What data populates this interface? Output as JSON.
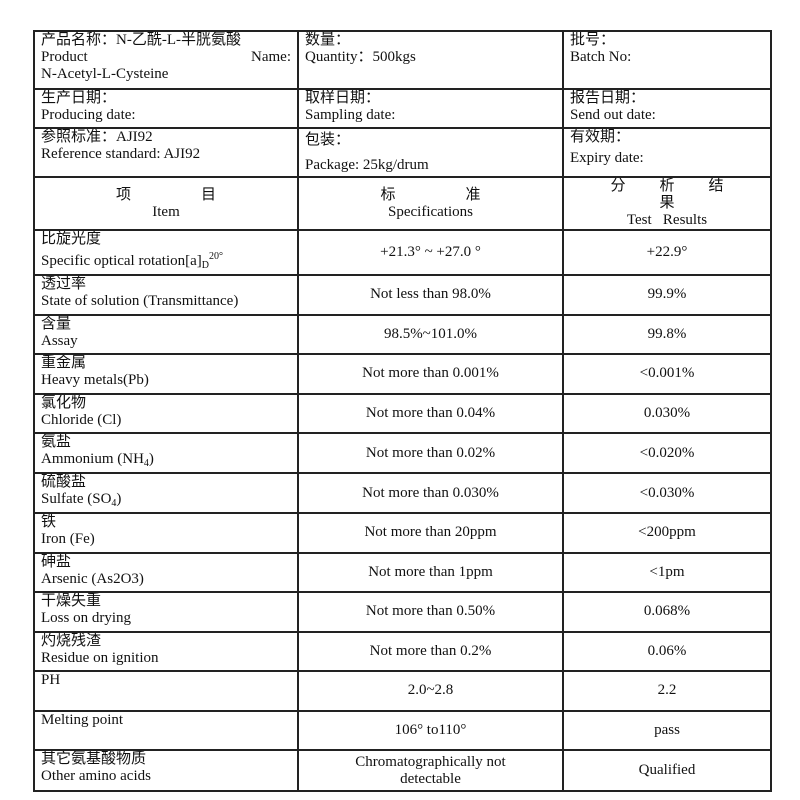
{
  "info": {
    "product_zh": "产品名称：N-乙酰-L-半胱氨酸",
    "product_label": "Product",
    "product_name_label": "Name:",
    "product_name": "N-Acetyl-L-Cysteine",
    "quantity_zh": "数量：",
    "quantity": "Quantity：500kgs",
    "batch_zh": "批号：",
    "batch": "Batch No:",
    "producing_zh": "生产日期：",
    "producing": "Producing date:",
    "sampling_zh": "取样日期：",
    "sampling": "Sampling date:",
    "sendout_zh": "报告日期：",
    "sendout": "Send out date:",
    "reference_zh": "参照标准：AJI92",
    "reference": "Reference standard: AJI92",
    "package_zh": "包装：",
    "package": "Package: 25kg/drum",
    "expiry_zh": "有效期：",
    "expiry": "Expiry date:"
  },
  "headers": {
    "item_zh": "项目",
    "item": "Item",
    "spec_zh": "标准",
    "spec": "Specifications",
    "result_zh": "分析结果",
    "result": "Test   Results"
  },
  "rows": [
    {
      "zh": "比旋光度",
      "en": "Specific optical rotation[a]",
      "sub": "D",
      "sup": "20°",
      "spec": "+21.3° ~ +27.0 °",
      "result": "+22.9°"
    },
    {
      "zh": "透过率",
      "en": "State of solution (Transmittance)",
      "spec": "Not less than 98.0%",
      "result": "99.9%"
    },
    {
      "zh": "含量",
      "en": "Assay",
      "spec": "98.5%~101.0%",
      "result": "99.8%"
    },
    {
      "zh": "重金属",
      "en": "Heavy metals(Pb)",
      "spec": "Not more than 0.001%",
      "result": "<0.001%"
    },
    {
      "zh": "氯化物",
      "en": "Chloride (Cl)",
      "spec": "Not more than 0.04%",
      "result": "0.030%"
    },
    {
      "zh": "氨盐",
      "en": "Ammonium (NH",
      "sub": "4",
      "en_end": ")",
      "spec": "Not more than 0.02%",
      "result": "<0.020%"
    },
    {
      "zh": "硫酸盐",
      "en": "Sulfate (SO",
      "sub": "4",
      "en_end": ")",
      "spec": "Not more than 0.030%",
      "result": "<0.030%"
    },
    {
      "zh": "铁",
      "en": "Iron (Fe)",
      "spec": "Not more than 20ppm",
      "result": "<200ppm"
    },
    {
      "zh": "砷盐",
      "en": "Arsenic (As2O3)",
      "spec": "Not more than 1ppm",
      "result": "<1pm"
    },
    {
      "zh": "干燥失重",
      "en": "Loss on drying",
      "spec": "Not more than 0.50%",
      "result": "0.068%"
    },
    {
      "zh": "灼烧残渣",
      "en": "Residue on ignition",
      "spec": "Not more than 0.2%",
      "result": "0.06%"
    },
    {
      "en": "PH",
      "spec": "2.0~2.8",
      "result": "2.2"
    },
    {
      "en": "Melting point",
      "spec": "106° to110°",
      "result": "pass"
    },
    {
      "zh": "其它氨基酸物质",
      "en": "Other amino acids",
      "spec": "Chromatographically not detectable",
      "result": "Qualified"
    }
  ]
}
